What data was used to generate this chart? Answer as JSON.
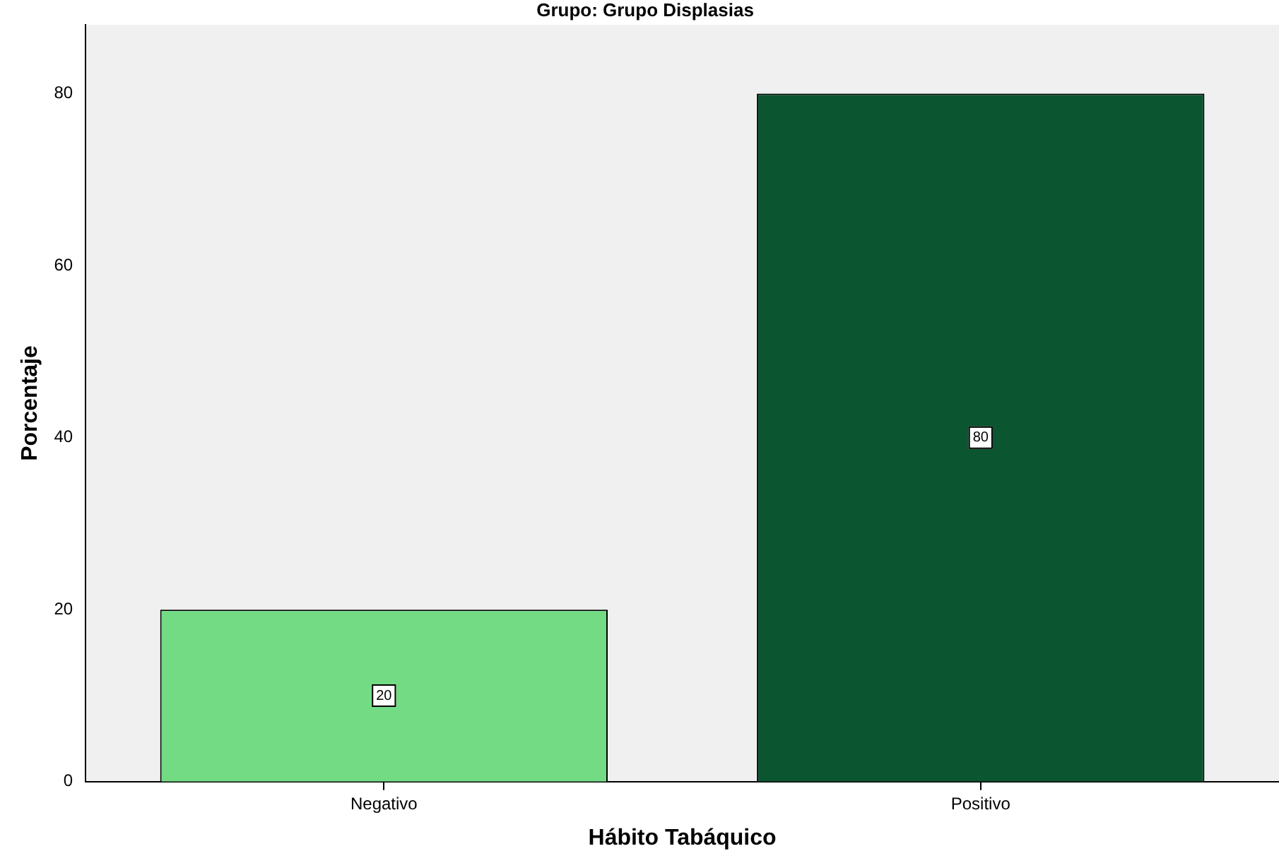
{
  "chart_data": {
    "type": "bar",
    "title": "Grupo: Grupo Displasias",
    "xlabel": "Hábito Tabáquico",
    "ylabel": "Porcentaje",
    "categories": [
      "Negativo",
      "Positivo"
    ],
    "values": [
      20,
      80
    ],
    "colors": [
      "#72db84",
      "#0b5530"
    ],
    "ylim": [
      0,
      88
    ],
    "yticks": [
      0,
      20,
      40,
      60,
      80
    ],
    "grid": false,
    "legend": false,
    "data_labels": true
  }
}
